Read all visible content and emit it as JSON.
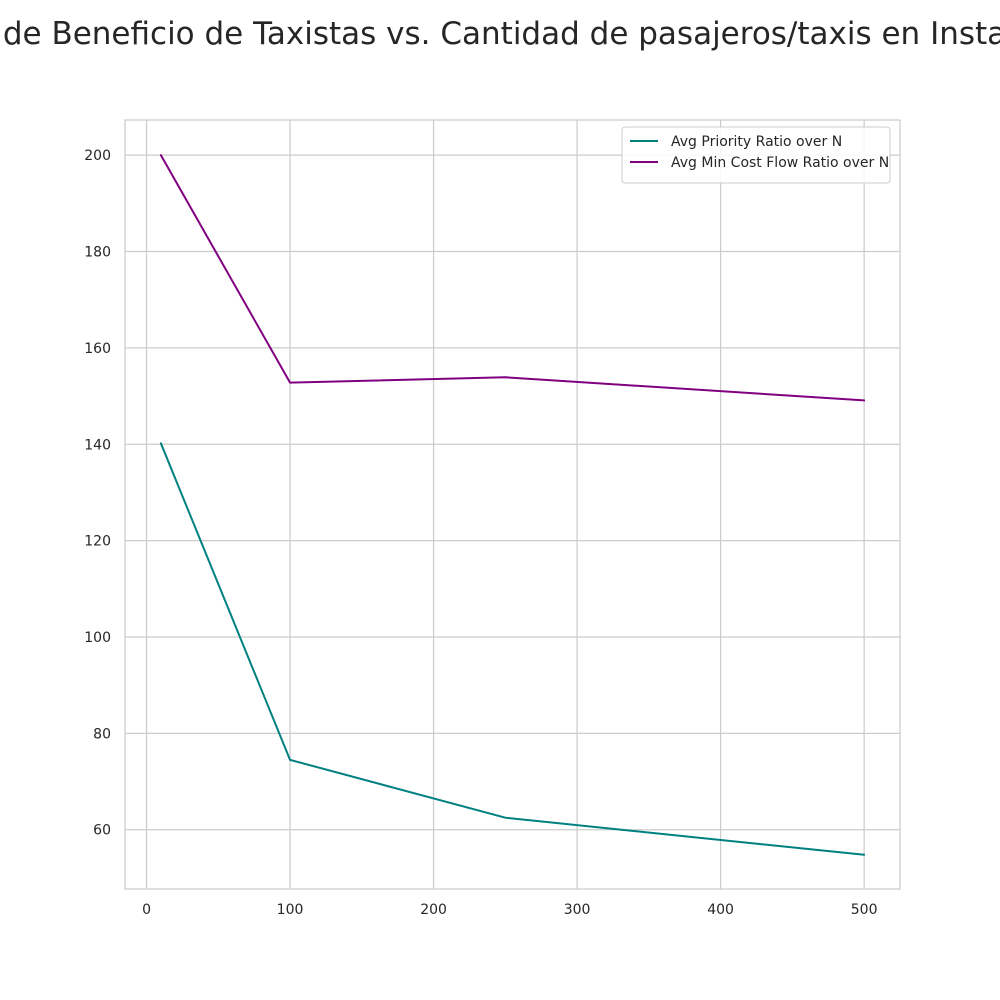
{
  "colors": {
    "background": "#ffffff",
    "grid": "#cccccc",
    "axis_frame": "#cccccc",
    "text": "#262626",
    "series_priority": "#008080",
    "series_mincost": "#800080"
  },
  "chart_data": {
    "type": "line",
    "title": "Ratio de Beneficio de Taxistas vs. Cantidad de pasajeros/taxis en Instancias",
    "xlabel": "",
    "ylabel": "",
    "xlim": [
      -15,
      525
    ],
    "ylim": [
      47.7,
      207.3
    ],
    "x_ticks": [
      0,
      100,
      200,
      300,
      400,
      500
    ],
    "y_ticks": [
      60,
      80,
      100,
      120,
      140,
      160,
      180,
      200
    ],
    "grid": true,
    "legend_position": "upper right",
    "series": [
      {
        "name": "Avg Priority Ratio over N",
        "color": "#008080",
        "x": [
          10,
          100,
          250,
          500
        ],
        "y": [
          140.2,
          74.5,
          62.5,
          54.8
        ]
      },
      {
        "name": "Avg Min Cost Flow Ratio over N",
        "color": "#800080",
        "x": [
          10,
          100,
          250,
          500
        ],
        "y": [
          200.0,
          152.8,
          153.9,
          149.1
        ]
      }
    ]
  }
}
